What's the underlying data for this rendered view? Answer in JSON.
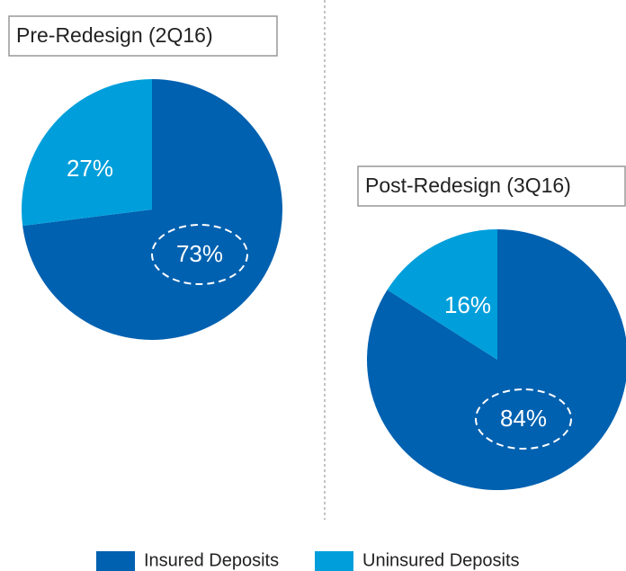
{
  "chart_data": [
    {
      "type": "pie",
      "title": "Pre-Redesign (2Q16)",
      "values": [
        73,
        27
      ],
      "value_labels": [
        "73%",
        "27%"
      ]
    },
    {
      "type": "pie",
      "title": "Post-Redesign (3Q16)",
      "values": [
        84,
        16
      ],
      "value_labels": [
        "84%",
        "16%"
      ]
    }
  ],
  "legend": [
    {
      "name": "Insured Deposits",
      "color": "#0061b0"
    },
    {
      "name": "Uninsured Deposits",
      "color": "#009fdb"
    }
  ]
}
